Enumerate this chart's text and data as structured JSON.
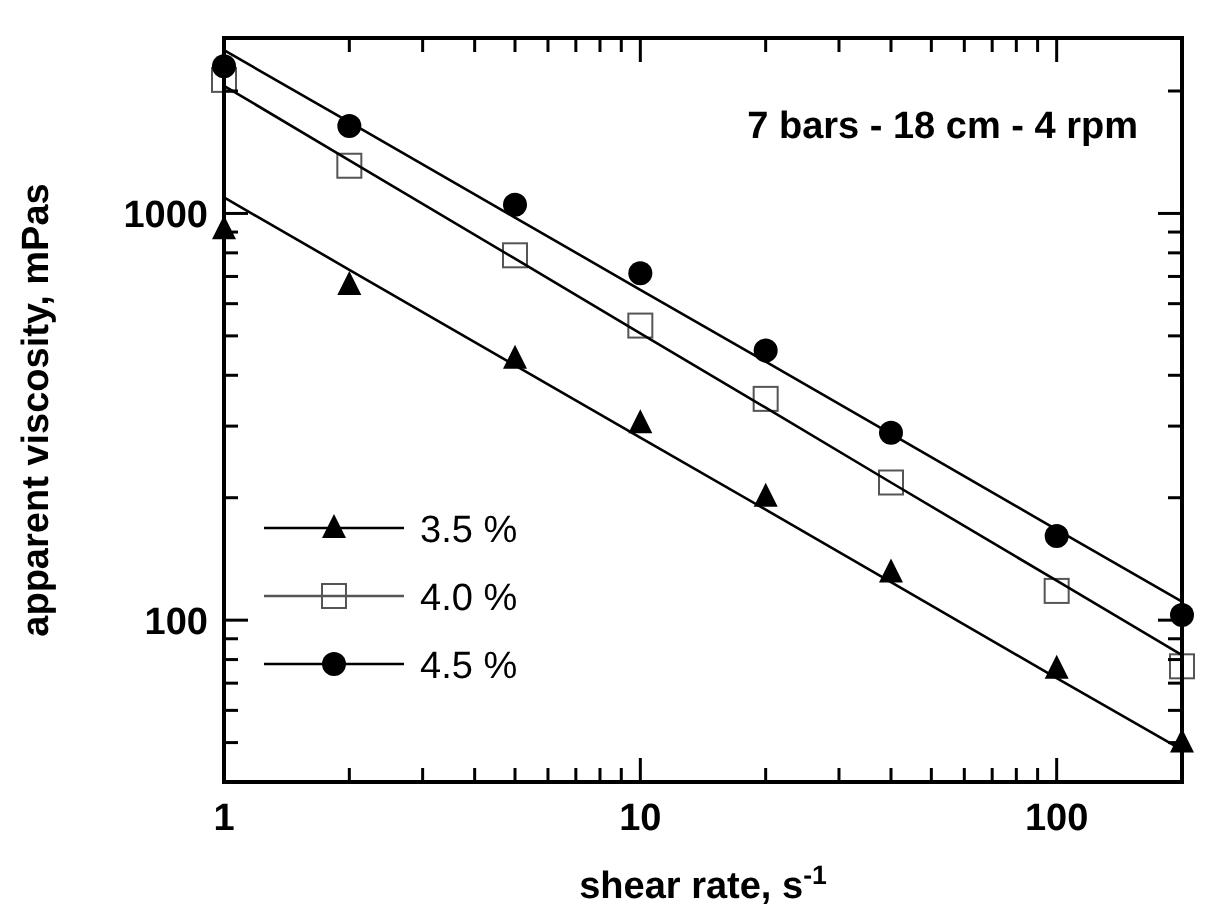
{
  "chart_data": {
    "type": "scatter",
    "xlabel": "shear rate, s$^{-1}$",
    "ylabel": "apparent viscosity, mPas",
    "annotations": [
      "7 bars - 18 cm - 4 rpm"
    ],
    "log": "xy",
    "legend": "bottom left",
    "grid": false,
    "xlim": [
      1,
      200
    ],
    "ylim": [
      40,
      2700
    ],
    "xticks": [
      1,
      {
        "value": 2,
        "label": null
      },
      {
        "value": 3,
        "label": null
      },
      {
        "value": 4,
        "label": null
      },
      {
        "value": 5,
        "label": null
      },
      {
        "value": 6,
        "label": null
      },
      {
        "value": 7,
        "label": null
      },
      {
        "value": 8,
        "label": null
      },
      {
        "value": 9,
        "label": null
      },
      10,
      {
        "value": 20,
        "label": null
      },
      {
        "value": 30,
        "label": null
      },
      {
        "value": 40,
        "label": null
      },
      {
        "value": 50,
        "label": null
      },
      {
        "value": 60,
        "label": null
      },
      {
        "value": 70,
        "label": null
      },
      {
        "value": 80,
        "label": null
      },
      {
        "value": 90,
        "label": null
      },
      100,
      {
        "value": 200,
        "label": null
      }
    ],
    "yticks": [
      {
        "value": 50,
        "label": null
      },
      {
        "value": 60,
        "label": null
      },
      {
        "value": 70,
        "label": null
      },
      {
        "value": 80,
        "label": null
      },
      {
        "value": 90,
        "label": null
      },
      100,
      {
        "value": 200,
        "label": null
      },
      {
        "value": 300,
        "label": null
      },
      {
        "value": 400,
        "label": null
      },
      {
        "value": 500,
        "label": null
      },
      {
        "value": 600,
        "label": null
      },
      {
        "value": 700,
        "label": null
      },
      {
        "value": 800,
        "label": null
      },
      {
        "value": 900,
        "label": null
      },
      1000,
      {
        "value": 2000,
        "label": null
      }
    ],
    "x": [
      1,
      2,
      5,
      10,
      20,
      40,
      100,
      200
    ],
    "series": [
      {
        "name": "3.5 %",
        "color": "#000000",
        "marker": "triangle",
        "values": [
          915,
          667,
          439,
          305,
          201,
          131,
          76,
          50
        ]
      },
      {
        "name": "4.0 %",
        "color": "#555555",
        "marker": "square",
        "values": [
          2130,
          1310,
          789,
          530,
          350,
          218,
          118,
          77
        ]
      },
      {
        "name": "4.5 %",
        "color": "#000000",
        "marker": "circle",
        "values": [
          2300,
          1640,
          1050,
          713,
          460,
          289,
          161,
          103
        ]
      },
      {
        "type": "line",
        "color": "#000000",
        "marker": "none",
        "values": [
          1095,
          727,
          423,
          281,
          187,
          124,
          72,
          48
        ]
      },
      {
        "type": "line",
        "color": "#000000",
        "marker": "none",
        "values": [
          2060,
          1351,
          774,
          507,
          333,
          218,
          125,
          82
        ]
      },
      {
        "type": "line",
        "color": "#000000",
        "marker": "none",
        "values": [
          2520,
          1676,
          977,
          649,
          432,
          287,
          167,
          111
        ]
      }
    ]
  }
}
